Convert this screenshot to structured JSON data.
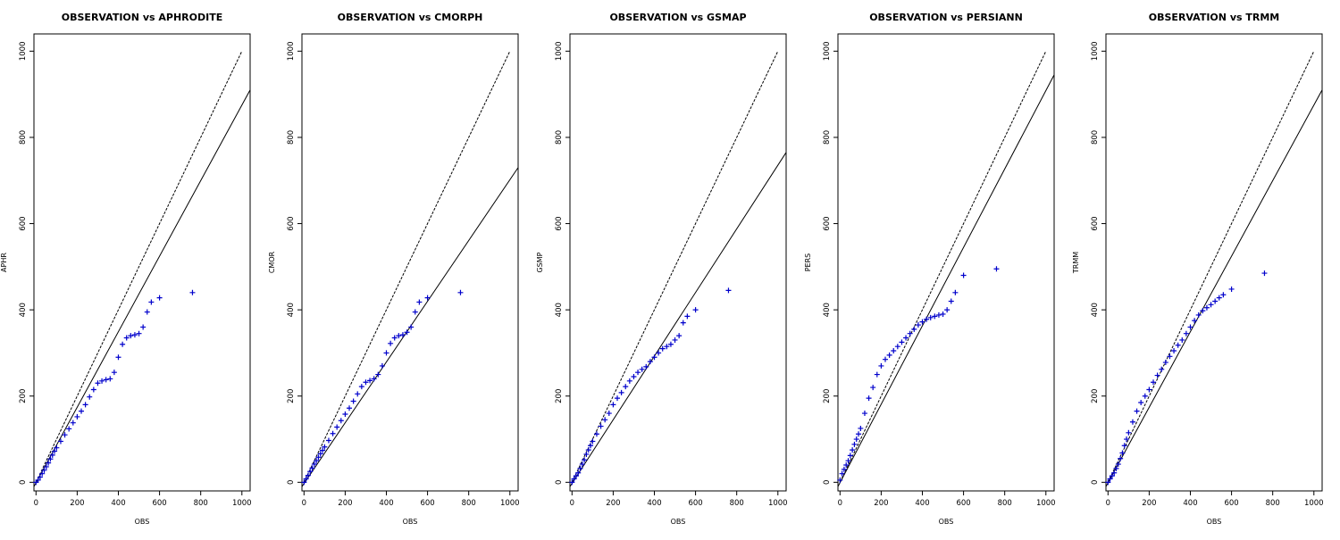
{
  "chart_data": [
    {
      "type": "scatter",
      "title": "OBSERVATION vs APHRODITE",
      "xlabel": "OBS",
      "ylabel": "APHR",
      "xlim": [
        -10,
        1040
      ],
      "ylim": [
        -20,
        1040
      ],
      "x_ticks": [
        0,
        200,
        400,
        600,
        800,
        1000
      ],
      "y_ticks": [
        0,
        200,
        400,
        600,
        800,
        1000
      ],
      "marker_color": "#0000cc",
      "reference_lines": [
        {
          "style": "dashed",
          "x": [
            0,
            1000
          ],
          "y": [
            0,
            1000
          ]
        },
        {
          "style": "solid",
          "x": [
            -10,
            1040
          ],
          "y": [
            -10,
            910
          ]
        }
      ],
      "points": [
        [
          0,
          0
        ],
        [
          10,
          5
        ],
        [
          20,
          12
        ],
        [
          30,
          20
        ],
        [
          40,
          28
        ],
        [
          50,
          36
        ],
        [
          60,
          45
        ],
        [
          70,
          54
        ],
        [
          80,
          63
        ],
        [
          90,
          72
        ],
        [
          100,
          80
        ],
        [
          120,
          95
        ],
        [
          140,
          110
        ],
        [
          160,
          124
        ],
        [
          180,
          138
        ],
        [
          200,
          152
        ],
        [
          220,
          165
        ],
        [
          240,
          180
        ],
        [
          260,
          198
        ],
        [
          280,
          215
        ],
        [
          300,
          230
        ],
        [
          320,
          235
        ],
        [
          340,
          238
        ],
        [
          360,
          240
        ],
        [
          380,
          255
        ],
        [
          400,
          290
        ],
        [
          420,
          320
        ],
        [
          440,
          335
        ],
        [
          460,
          340
        ],
        [
          480,
          342
        ],
        [
          500,
          345
        ],
        [
          520,
          360
        ],
        [
          540,
          395
        ],
        [
          560,
          418
        ],
        [
          600,
          428
        ],
        [
          760,
          440
        ]
      ]
    },
    {
      "type": "scatter",
      "title": "OBSERVATION vs CMORPH",
      "xlabel": "OBS",
      "ylabel": "CMOR",
      "xlim": [
        -10,
        1040
      ],
      "ylim": [
        -20,
        1040
      ],
      "x_ticks": [
        0,
        200,
        400,
        600,
        800,
        1000
      ],
      "y_ticks": [
        0,
        200,
        400,
        600,
        800,
        1000
      ],
      "marker_color": "#0000cc",
      "reference_lines": [
        {
          "style": "dashed",
          "x": [
            0,
            1000
          ],
          "y": [
            0,
            1000
          ]
        },
        {
          "style": "solid",
          "x": [
            -10,
            1040
          ],
          "y": [
            -10,
            730
          ]
        }
      ],
      "points": [
        [
          0,
          0
        ],
        [
          10,
          8
        ],
        [
          20,
          16
        ],
        [
          30,
          25
        ],
        [
          40,
          33
        ],
        [
          50,
          42
        ],
        [
          60,
          50
        ],
        [
          70,
          58
        ],
        [
          80,
          66
        ],
        [
          90,
          74
        ],
        [
          100,
          82
        ],
        [
          120,
          97
        ],
        [
          140,
          113
        ],
        [
          160,
          128
        ],
        [
          180,
          143
        ],
        [
          200,
          158
        ],
        [
          220,
          172
        ],
        [
          240,
          188
        ],
        [
          260,
          205
        ],
        [
          280,
          222
        ],
        [
          300,
          232
        ],
        [
          320,
          236
        ],
        [
          340,
          240
        ],
        [
          360,
          250
        ],
        [
          380,
          270
        ],
        [
          400,
          300
        ],
        [
          420,
          322
        ],
        [
          440,
          335
        ],
        [
          460,
          340
        ],
        [
          480,
          342
        ],
        [
          500,
          348
        ],
        [
          520,
          360
        ],
        [
          540,
          395
        ],
        [
          560,
          418
        ],
        [
          600,
          428
        ],
        [
          760,
          440
        ]
      ]
    },
    {
      "type": "scatter",
      "title": "OBSERVATION vs GSMAP",
      "xlabel": "OBS",
      "ylabel": "GSMP",
      "xlim": [
        -10,
        1040
      ],
      "ylim": [
        -20,
        1040
      ],
      "x_ticks": [
        0,
        200,
        400,
        600,
        800,
        1000
      ],
      "y_ticks": [
        0,
        200,
        400,
        600,
        800,
        1000
      ],
      "marker_color": "#0000cc",
      "reference_lines": [
        {
          "style": "dashed",
          "x": [
            0,
            1000
          ],
          "y": [
            0,
            1000
          ]
        },
        {
          "style": "solid",
          "x": [
            -10,
            1040
          ],
          "y": [
            -10,
            765
          ]
        }
      ],
      "points": [
        [
          0,
          0
        ],
        [
          10,
          8
        ],
        [
          20,
          15
        ],
        [
          30,
          22
        ],
        [
          40,
          32
        ],
        [
          50,
          42
        ],
        [
          60,
          52
        ],
        [
          70,
          65
        ],
        [
          80,
          75
        ],
        [
          90,
          85
        ],
        [
          100,
          95
        ],
        [
          120,
          112
        ],
        [
          140,
          130
        ],
        [
          160,
          145
        ],
        [
          180,
          160
        ],
        [
          200,
          180
        ],
        [
          220,
          195
        ],
        [
          240,
          208
        ],
        [
          260,
          222
        ],
        [
          280,
          235
        ],
        [
          300,
          245
        ],
        [
          320,
          255
        ],
        [
          340,
          262
        ],
        [
          360,
          268
        ],
        [
          380,
          280
        ],
        [
          400,
          290
        ],
        [
          420,
          300
        ],
        [
          440,
          310
        ],
        [
          460,
          315
        ],
        [
          480,
          320
        ],
        [
          500,
          330
        ],
        [
          520,
          340
        ],
        [
          540,
          370
        ],
        [
          560,
          385
        ],
        [
          600,
          400
        ],
        [
          760,
          445
        ]
      ]
    },
    {
      "type": "scatter",
      "title": "OBSERVATION vs PERSIANN",
      "xlabel": "OBS",
      "ylabel": "PERS",
      "xlim": [
        -10,
        1040
      ],
      "ylim": [
        -20,
        1040
      ],
      "x_ticks": [
        0,
        200,
        400,
        600,
        800,
        1000
      ],
      "y_ticks": [
        0,
        200,
        400,
        600,
        800,
        1000
      ],
      "marker_color": "#0000cc",
      "reference_lines": [
        {
          "style": "dashed",
          "x": [
            0,
            1000
          ],
          "y": [
            0,
            1000
          ]
        },
        {
          "style": "solid",
          "x": [
            -10,
            1040
          ],
          "y": [
            -10,
            945
          ]
        }
      ],
      "points": [
        [
          0,
          5
        ],
        [
          10,
          20
        ],
        [
          20,
          30
        ],
        [
          30,
          40
        ],
        [
          40,
          50
        ],
        [
          50,
          62
        ],
        [
          60,
          75
        ],
        [
          70,
          88
        ],
        [
          80,
          100
        ],
        [
          90,
          112
        ],
        [
          100,
          125
        ],
        [
          120,
          160
        ],
        [
          140,
          195
        ],
        [
          160,
          220
        ],
        [
          180,
          250
        ],
        [
          200,
          270
        ],
        [
          220,
          285
        ],
        [
          240,
          295
        ],
        [
          260,
          305
        ],
        [
          280,
          315
        ],
        [
          300,
          325
        ],
        [
          320,
          335
        ],
        [
          340,
          345
        ],
        [
          360,
          355
        ],
        [
          380,
          365
        ],
        [
          400,
          372
        ],
        [
          420,
          378
        ],
        [
          440,
          382
        ],
        [
          460,
          385
        ],
        [
          480,
          388
        ],
        [
          500,
          390
        ],
        [
          520,
          400
        ],
        [
          540,
          420
        ],
        [
          560,
          440
        ],
        [
          600,
          480
        ],
        [
          760,
          495
        ]
      ]
    },
    {
      "type": "scatter",
      "title": "OBSERVATION vs TRMM",
      "xlabel": "OBS",
      "ylabel": "TRMM",
      "xlim": [
        -10,
        1040
      ],
      "ylim": [
        -20,
        1040
      ],
      "x_ticks": [
        0,
        200,
        400,
        600,
        800,
        1000
      ],
      "y_ticks": [
        0,
        200,
        400,
        600,
        800,
        1000
      ],
      "marker_color": "#0000cc",
      "reference_lines": [
        {
          "style": "dashed",
          "x": [
            0,
            1000
          ],
          "y": [
            0,
            1000
          ]
        },
        {
          "style": "solid",
          "x": [
            -10,
            1040
          ],
          "y": [
            -10,
            910
          ]
        }
      ],
      "points": [
        [
          0,
          0
        ],
        [
          10,
          8
        ],
        [
          20,
          15
        ],
        [
          30,
          22
        ],
        [
          40,
          32
        ],
        [
          50,
          42
        ],
        [
          60,
          55
        ],
        [
          70,
          68
        ],
        [
          80,
          85
        ],
        [
          90,
          100
        ],
        [
          100,
          115
        ],
        [
          120,
          140
        ],
        [
          140,
          165
        ],
        [
          160,
          185
        ],
        [
          180,
          200
        ],
        [
          200,
          215
        ],
        [
          220,
          232
        ],
        [
          240,
          248
        ],
        [
          260,
          262
        ],
        [
          280,
          278
        ],
        [
          300,
          292
        ],
        [
          320,
          305
        ],
        [
          340,
          318
        ],
        [
          360,
          330
        ],
        [
          380,
          345
        ],
        [
          400,
          360
        ],
        [
          420,
          375
        ],
        [
          440,
          388
        ],
        [
          460,
          398
        ],
        [
          480,
          405
        ],
        [
          500,
          412
        ],
        [
          520,
          420
        ],
        [
          540,
          428
        ],
        [
          560,
          435
        ],
        [
          600,
          448
        ],
        [
          760,
          485
        ]
      ]
    }
  ]
}
